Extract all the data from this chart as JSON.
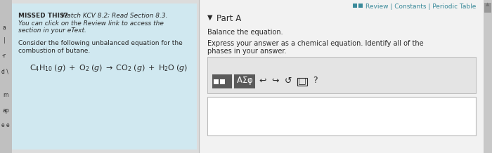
{
  "bg_color": "#dcdcdc",
  "left_panel_bg": "#d0e8f0",
  "right_panel_bg": "#f2f2f2",
  "teal_color": "#3a8a9a",
  "dark_text": "#2a2a2a",
  "gray_text": "#555555",
  "toolbar_btn_bg": "#5a5a5a",
  "input_box_bg": "#ffffff",
  "missed_bold": "MISSED THIS?",
  "missed_italic": " Watch KCV 8.2; Read Section 8.3.",
  "missed_line2": "You can click on the Review link to access the",
  "missed_line3": "section in your eText.",
  "consider_line1": "Consider the following unbalanced equation for the",
  "consider_line2": "combustion of butane.",
  "top_right_text": "Review | Constants | Periodic Table",
  "part_a": "Part A",
  "balance_text": "Balance the equation.",
  "express_line1": "Express your answer as a chemical equation. Identify all of the",
  "express_line2": "phases in your answer.",
  "scrollbar_bg": "#c8c8c8",
  "scrollbar_thumb": "#999999"
}
